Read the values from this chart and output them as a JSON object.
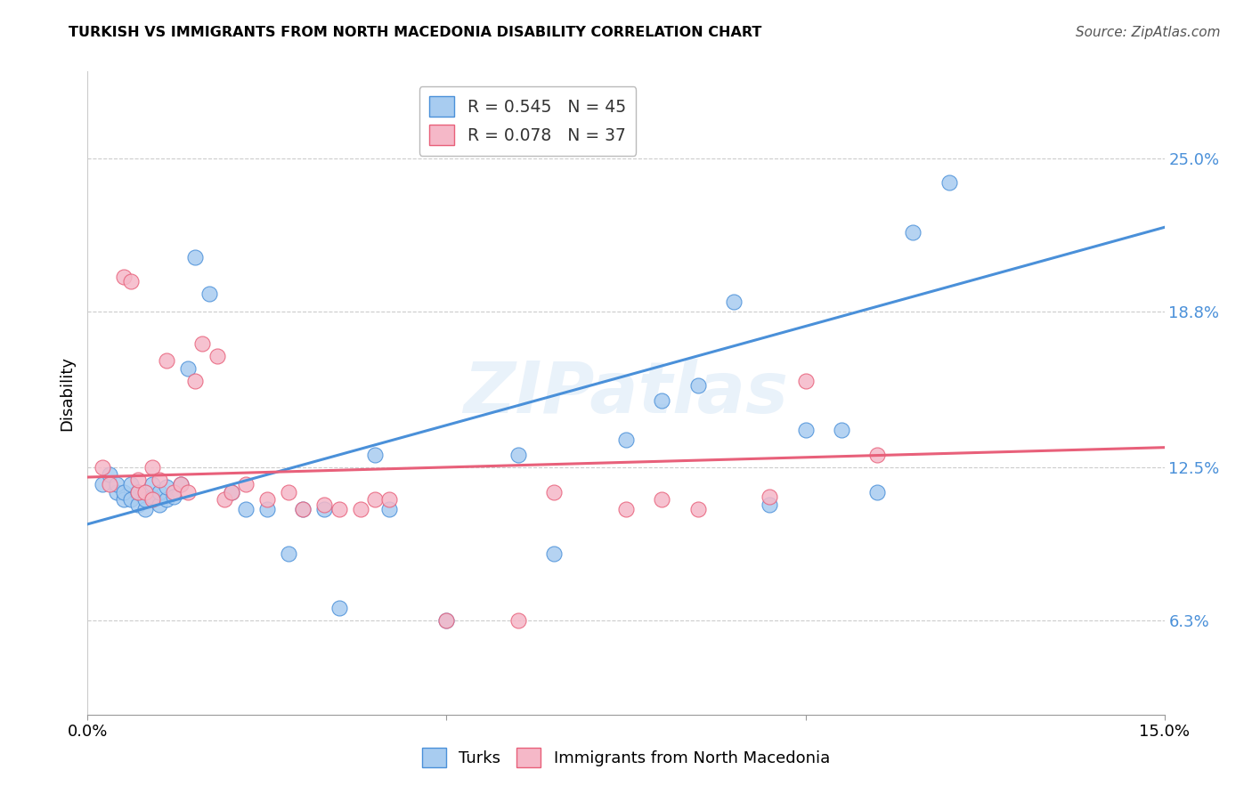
{
  "title": "TURKISH VS IMMIGRANTS FROM NORTH MACEDONIA DISABILITY CORRELATION CHART",
  "source": "Source: ZipAtlas.com",
  "ylabel": "Disability",
  "watermark": "ZIPatlas",
  "xlim": [
    0.0,
    0.15
  ],
  "ylim": [
    0.025,
    0.285
  ],
  "ytick_values": [
    0.063,
    0.125,
    0.188,
    0.25
  ],
  "ytick_labels": [
    "6.3%",
    "12.5%",
    "18.8%",
    "25.0%"
  ],
  "blue_R": 0.545,
  "blue_N": 45,
  "pink_R": 0.078,
  "pink_N": 37,
  "blue_color": "#A8CCF0",
  "pink_color": "#F5B8C8",
  "blue_line_color": "#4A90D9",
  "pink_line_color": "#E8607A",
  "legend_label_blue": "Turks",
  "legend_label_pink": "Immigrants from North Macedonia",
  "blue_x": [
    0.002,
    0.003,
    0.004,
    0.004,
    0.005,
    0.005,
    0.006,
    0.006,
    0.007,
    0.007,
    0.008,
    0.008,
    0.009,
    0.009,
    0.01,
    0.01,
    0.011,
    0.011,
    0.012,
    0.013,
    0.014,
    0.015,
    0.017,
    0.02,
    0.022,
    0.025,
    0.028,
    0.03,
    0.033,
    0.035,
    0.04,
    0.042,
    0.05,
    0.06,
    0.065,
    0.075,
    0.08,
    0.085,
    0.09,
    0.095,
    0.1,
    0.105,
    0.11,
    0.115,
    0.12
  ],
  "blue_y": [
    0.118,
    0.122,
    0.115,
    0.118,
    0.112,
    0.115,
    0.112,
    0.118,
    0.11,
    0.115,
    0.108,
    0.112,
    0.113,
    0.118,
    0.11,
    0.115,
    0.112,
    0.117,
    0.113,
    0.118,
    0.165,
    0.21,
    0.195,
    0.115,
    0.108,
    0.108,
    0.09,
    0.108,
    0.108,
    0.068,
    0.13,
    0.108,
    0.063,
    0.13,
    0.09,
    0.136,
    0.152,
    0.158,
    0.192,
    0.11,
    0.14,
    0.14,
    0.115,
    0.22,
    0.24
  ],
  "pink_x": [
    0.002,
    0.003,
    0.005,
    0.006,
    0.007,
    0.007,
    0.008,
    0.009,
    0.009,
    0.01,
    0.011,
    0.012,
    0.013,
    0.014,
    0.015,
    0.016,
    0.018,
    0.019,
    0.02,
    0.022,
    0.025,
    0.028,
    0.03,
    0.033,
    0.035,
    0.038,
    0.04,
    0.042,
    0.05,
    0.06,
    0.065,
    0.075,
    0.08,
    0.085,
    0.095,
    0.1,
    0.11
  ],
  "pink_y": [
    0.125,
    0.118,
    0.202,
    0.2,
    0.115,
    0.12,
    0.115,
    0.125,
    0.112,
    0.12,
    0.168,
    0.115,
    0.118,
    0.115,
    0.16,
    0.175,
    0.17,
    0.112,
    0.115,
    0.118,
    0.112,
    0.115,
    0.108,
    0.11,
    0.108,
    0.108,
    0.112,
    0.112,
    0.063,
    0.063,
    0.115,
    0.108,
    0.112,
    0.108,
    0.113,
    0.16,
    0.13
  ],
  "blue_line_x0": 0.0,
  "blue_line_y0": 0.102,
  "blue_line_x1": 0.15,
  "blue_line_y1": 0.222,
  "pink_line_x0": 0.0,
  "pink_line_y0": 0.121,
  "pink_line_x1": 0.15,
  "pink_line_y1": 0.133
}
